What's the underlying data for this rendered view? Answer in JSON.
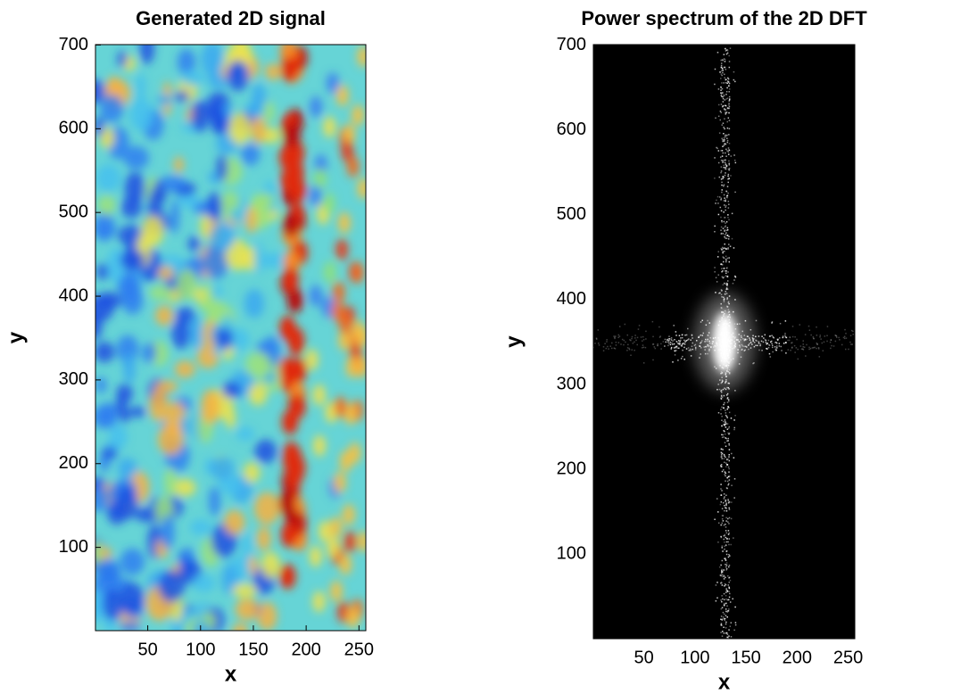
{
  "chart_data": [
    {
      "type": "image",
      "title": "Generated 2D signal",
      "xlabel": "x",
      "ylabel": "y",
      "colormap": "jet",
      "xlim": [
        0.5,
        256.5
      ],
      "ylim": [
        0.5,
        700.5
      ],
      "xticks": [
        50,
        100,
        150,
        200,
        250
      ],
      "yticks": [
        100,
        200,
        300,
        400,
        500,
        600,
        700
      ]
    },
    {
      "type": "image",
      "title": "Power spectrum of the 2D DFT",
      "xlabel": "x",
      "ylabel": "y",
      "colormap": "gray",
      "xlim": [
        0.5,
        256.5
      ],
      "ylim": [
        0.5,
        700.5
      ],
      "xticks": [
        50,
        100,
        150,
        200,
        250
      ],
      "yticks": [
        100,
        200,
        300,
        400,
        500,
        600,
        700
      ]
    }
  ]
}
